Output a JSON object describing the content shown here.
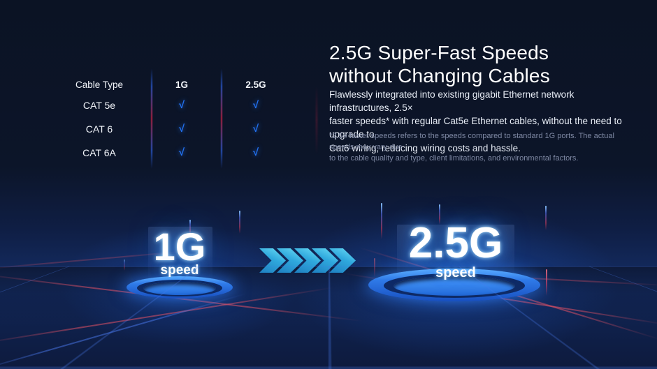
{
  "table": {
    "headers": [
      "Cable Type",
      "1G",
      "2.5G"
    ],
    "rows": [
      {
        "label": "CAT 5e"
      },
      {
        "label": "CAT 6"
      },
      {
        "label": "CAT 6A"
      }
    ]
  },
  "content": {
    "title_lines": [
      "2.5G Super-Fast Speeds",
      "without Changing Cables"
    ],
    "body_lines": [
      "Flawlessly integrated into existing gigabit Ethernet network infrastructures, 2.5×",
      "faster speeds* with regular Cat5e Ethernet cables, without the need to upgrade to",
      "Cat6 wiring, reducing wiring costs and hassle."
    ],
    "footnote_lines": [
      "*2.5× faster speeds refers to the speeds compared to standard 1G ports. The actual speeds may vary due",
      "to the cable quality and type, client limitations, and environmental factors."
    ]
  },
  "scene": {
    "platform_1g": {
      "value": "1G",
      "label": "speed"
    },
    "platform_2_5g": {
      "value": "2.5G",
      "label": "speed"
    },
    "arrows": {
      "count": 5,
      "direction": "right"
    }
  },
  "icons": {
    "check": "√"
  },
  "colors": {
    "background": "#0c1428",
    "accent_blue": "#2272f2",
    "accent_cyan": "#3ec6f0",
    "accent_red": "#b02040",
    "platform_blue": "#2f7ae8",
    "text_primary": "#ffffff",
    "text_secondary": "#e8edf6",
    "text_footnote": "#7e88a3"
  }
}
